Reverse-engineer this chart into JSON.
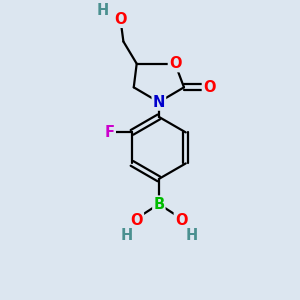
{
  "background_color": "#dce6f0",
  "atom_colors": {
    "O": "#ff0000",
    "N": "#0000cc",
    "B": "#00bb00",
    "F": "#cc00cc",
    "C": "#000000",
    "H": "#4a9090"
  },
  "bond_color": "#000000",
  "bond_width": 1.6,
  "font_size_atom": 10.5
}
